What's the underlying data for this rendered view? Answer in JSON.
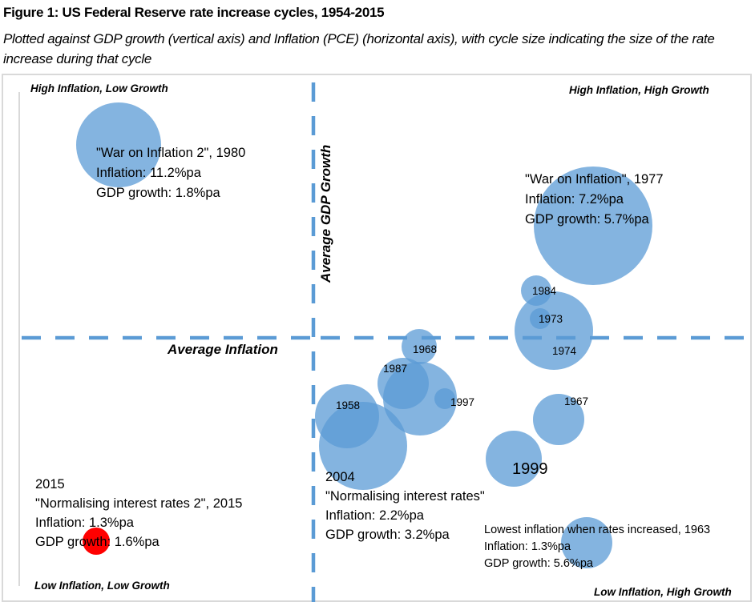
{
  "title": "Figure 1: US Federal Reserve rate increase cycles, 1954-2015",
  "subtitle": "Plotted against GDP growth (vertical axis) and Inflation (PCE) (horizontal axis), with cycle size indicating the size of the rate increase during that cycle",
  "chart_data": {
    "type": "scatter",
    "subtype": "bubble",
    "title": "Figure 1: US Federal Reserve rate increase cycles, 1954-2015",
    "subtitle": "Plotted against GDP growth (vertical axis) and Inflation (PCE) (horizontal axis), with cycle size indicating the size of the rate increase during that cycle",
    "xlabel": "Average Inflation",
    "ylabel": "Average GDP Growth",
    "grid": false,
    "quadrant_labels": {
      "top_left": "High Inflation, Low Growth",
      "top_right": "High Inflation, High Growth",
      "bottom_left": "Low Inflation, Low Growth",
      "bottom_right": "Low Inflation, High Growth"
    },
    "colors": {
      "bubble": "#5b9bd5",
      "bubble_opacity": 0.75,
      "highlight": "#ff0000",
      "reference_line": "#5b9bd5"
    },
    "points": [
      {
        "label": "1980",
        "name": "\"War on Inflation 2\", 1980",
        "inflation": 11.2,
        "gdp_growth": 1.8,
        "annotation": [
          "\"War on Inflation 2\", 1980",
          "Inflation: 11.2%pa",
          "GDP growth: 1.8%pa"
        ]
      },
      {
        "label": "1977",
        "name": "\"War on Inflation\", 1977",
        "inflation": 7.2,
        "gdp_growth": 5.7,
        "annotation": [
          "\"War on Inflation\", 1977",
          "Inflation: 7.2%pa",
          "GDP growth: 5.7%pa"
        ]
      },
      {
        "label": "1984"
      },
      {
        "label": "1973"
      },
      {
        "label": "1974"
      },
      {
        "label": "1968"
      },
      {
        "label": "1987"
      },
      {
        "label": ""
      },
      {
        "label": "1997"
      },
      {
        "label": "1958"
      },
      {
        "label": "2004",
        "name": "\"Normalising interest rates\"",
        "inflation": 2.2,
        "gdp_growth": 3.2,
        "annotation": [
          "2004",
          "\"Normalising interest rates\"",
          "Inflation: 2.2%pa",
          "GDP growth: 3.2%pa"
        ]
      },
      {
        "label": "1967"
      },
      {
        "label": "1999"
      },
      {
        "label": "1963",
        "name": "Lowest inflation when rates increased, 1963",
        "inflation": 1.3,
        "gdp_growth": 5.6,
        "annotation": [
          "Lowest inflation when rates increased, 1963",
          "Inflation: 1.3%pa",
          "GDP growth: 5.6%pa"
        ]
      },
      {
        "label": "2015",
        "name": "\"Normalising interest rates 2\", 2015",
        "inflation": 1.3,
        "gdp_growth": 1.6,
        "highlight": true,
        "annotation": [
          "2015",
          "\"Normalising interest rates 2\", 2015",
          "Inflation: 1.3%pa",
          "GDP growth: 1.6%pa"
        ]
      }
    ]
  }
}
